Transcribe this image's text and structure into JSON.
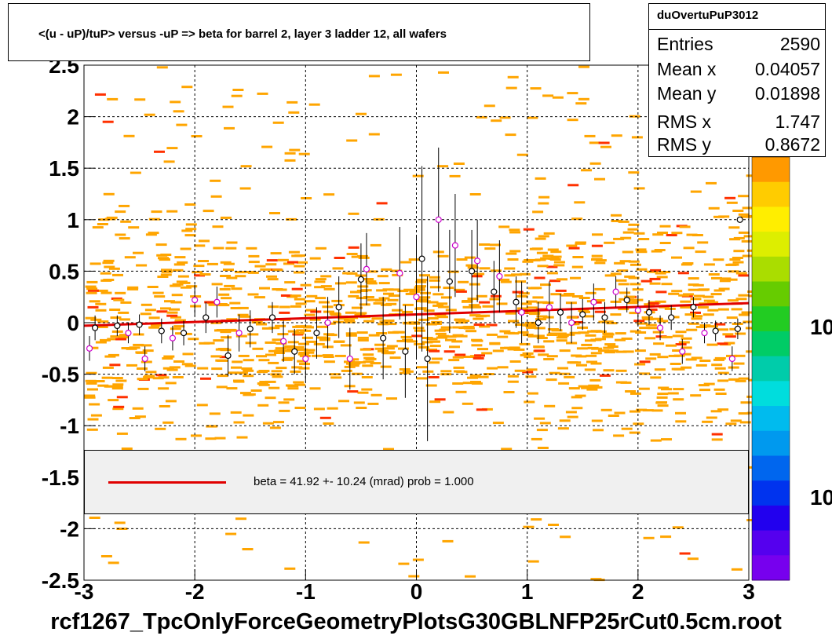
{
  "title": "<(u - uP)/tuP> versus  -uP => beta for barrel 2, layer 3 ladder 12, all wafers",
  "stats": {
    "name": "duOvertuPuP3012",
    "entries_label": "Entries",
    "entries": "2590",
    "meanx_label": "Mean x",
    "meanx": "0.04057",
    "meany_label": "Mean y",
    "meany": "0.01898",
    "rmsx_label": "RMS x",
    "rmsx": "1.747",
    "rmsy_label": "RMS y",
    "rmsy": "0.8672"
  },
  "legend": {
    "text": "beta =    41.92 +- 10.24 (mrad) prob = 1.000",
    "color": "#e00000"
  },
  "footer": "rcf1267_TpcOnlyForceGeometryPlotsG30GBLNFP25rCut0.5cm.root",
  "colors": {
    "hist_main": "#ffa500",
    "hist_hot": "#ff3000",
    "fit": "#e00000",
    "profile_a": "#000000",
    "profile_b": "#cc00cc"
  },
  "chart_data": {
    "type": "heatmap",
    "xlim": [
      -3,
      3
    ],
    "ylim": [
      -2.5,
      2.5
    ],
    "x_ticks": [
      "-3",
      "-2",
      "-1",
      "0",
      "1",
      "2",
      "3"
    ],
    "y_ticks": [
      "-2.5",
      "-2",
      "-1.5",
      "-1",
      "-0.5",
      "0",
      "0.5",
      "1",
      "1.5",
      "2",
      "2.5"
    ],
    "z_labels": [
      "10",
      "10"
    ],
    "grid": true,
    "fit_line": {
      "x": [
        -3,
        3
      ],
      "y": [
        -0.03,
        0.19
      ]
    },
    "profile_black": [
      {
        "x": -2.9,
        "y": -0.05,
        "e": 0.12
      },
      {
        "x": -2.7,
        "y": -0.03,
        "e": 0.1
      },
      {
        "x": -2.5,
        "y": -0.02,
        "e": 0.1
      },
      {
        "x": -2.3,
        "y": -0.08,
        "e": 0.12
      },
      {
        "x": -2.1,
        "y": -0.1,
        "e": 0.12
      },
      {
        "x": -1.9,
        "y": 0.05,
        "e": 0.15
      },
      {
        "x": -1.7,
        "y": -0.32,
        "e": 0.2
      },
      {
        "x": -1.5,
        "y": -0.06,
        "e": 0.18
      },
      {
        "x": -1.3,
        "y": 0.05,
        "e": 0.15
      },
      {
        "x": -1.1,
        "y": -0.28,
        "e": 0.22
      },
      {
        "x": -0.9,
        "y": -0.1,
        "e": 0.25
      },
      {
        "x": -0.7,
        "y": 0.15,
        "e": 0.3
      },
      {
        "x": -0.5,
        "y": 0.42,
        "e": 0.35
      },
      {
        "x": -0.3,
        "y": -0.15,
        "e": 0.4
      },
      {
        "x": -0.1,
        "y": -0.28,
        "e": 0.45
      },
      {
        "x": 0.05,
        "y": 0.62,
        "e": 0.9
      },
      {
        "x": 0.1,
        "y": -0.35,
        "e": 0.8
      },
      {
        "x": 0.3,
        "y": 0.4,
        "e": 0.5
      },
      {
        "x": 0.5,
        "y": 0.5,
        "e": 0.4
      },
      {
        "x": 0.7,
        "y": 0.3,
        "e": 0.3
      },
      {
        "x": 0.9,
        "y": 0.2,
        "e": 0.25
      },
      {
        "x": 1.1,
        "y": 0.0,
        "e": 0.2
      },
      {
        "x": 1.3,
        "y": 0.1,
        "e": 0.18
      },
      {
        "x": 1.5,
        "y": 0.08,
        "e": 0.15
      },
      {
        "x": 1.7,
        "y": 0.05,
        "e": 0.15
      },
      {
        "x": 1.9,
        "y": 0.22,
        "e": 0.12
      },
      {
        "x": 2.1,
        "y": 0.1,
        "e": 0.12
      },
      {
        "x": 2.3,
        "y": 0.05,
        "e": 0.12
      },
      {
        "x": 2.5,
        "y": 0.15,
        "e": 0.1
      },
      {
        "x": 2.7,
        "y": -0.08,
        "e": 0.1
      },
      {
        "x": 2.9,
        "y": -0.06,
        "e": 0.1
      },
      {
        "x": 2.92,
        "y": 1.0,
        "e": 0.0
      }
    ],
    "profile_magenta": [
      {
        "x": -2.95,
        "y": -0.25,
        "e": 0.12
      },
      {
        "x": -2.6,
        "y": -0.1,
        "e": 0.1
      },
      {
        "x": -2.45,
        "y": -0.35,
        "e": 0.12
      },
      {
        "x": -2.2,
        "y": -0.15,
        "e": 0.12
      },
      {
        "x": -2.0,
        "y": 0.22,
        "e": 0.15
      },
      {
        "x": -1.8,
        "y": 0.2,
        "e": 0.15
      },
      {
        "x": -1.6,
        "y": -0.1,
        "e": 0.18
      },
      {
        "x": -1.2,
        "y": -0.18,
        "e": 0.2
      },
      {
        "x": -1.0,
        "y": -0.35,
        "e": 0.22
      },
      {
        "x": -0.8,
        "y": 0.0,
        "e": 0.25
      },
      {
        "x": -0.6,
        "y": -0.35,
        "e": 0.3
      },
      {
        "x": -0.45,
        "y": 0.52,
        "e": 0.35
      },
      {
        "x": -0.15,
        "y": 0.48,
        "e": 0.45
      },
      {
        "x": 0.0,
        "y": 0.25,
        "e": 0.6
      },
      {
        "x": 0.2,
        "y": 1.0,
        "e": 0.7
      },
      {
        "x": 0.35,
        "y": 0.75,
        "e": 0.5
      },
      {
        "x": 0.55,
        "y": 0.6,
        "e": 0.4
      },
      {
        "x": 0.75,
        "y": 0.45,
        "e": 0.35
      },
      {
        "x": 0.95,
        "y": 0.1,
        "e": 0.3
      },
      {
        "x": 1.2,
        "y": 0.15,
        "e": 0.25
      },
      {
        "x": 1.4,
        "y": 0.0,
        "e": 0.2
      },
      {
        "x": 1.6,
        "y": 0.2,
        "e": 0.18
      },
      {
        "x": 1.8,
        "y": 0.3,
        "e": 0.15
      },
      {
        "x": 2.0,
        "y": 0.12,
        "e": 0.15
      },
      {
        "x": 2.2,
        "y": -0.05,
        "e": 0.12
      },
      {
        "x": 2.4,
        "y": -0.28,
        "e": 0.12
      },
      {
        "x": 2.6,
        "y": -0.1,
        "e": 0.1
      },
      {
        "x": 2.85,
        "y": -0.35,
        "e": 0.12
      }
    ]
  }
}
